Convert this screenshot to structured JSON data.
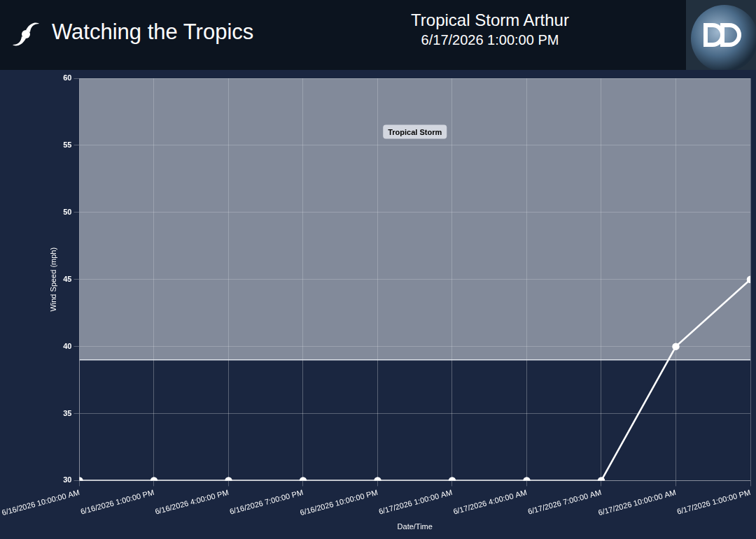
{
  "header": {
    "text": "Watching the Tropics"
  },
  "chart_data": {
    "type": "line",
    "title": "Tropical Storm Arthur",
    "subtitle": "6/17/2026 1:00:00 PM",
    "x_label": "Date/Time",
    "y_label": "Wind Speed (mph)",
    "categories": [
      "6/16/2026 10:00:00 AM",
      "6/16/2026 1:00:00 PM",
      "6/16/2026 4:00:00 PM",
      "6/16/2026 7:00:00 PM",
      "6/16/2026 10:00:00 PM",
      "6/17/2026 1:00:00 AM",
      "6/17/2026 4:00:00 AM",
      "6/17/2026 7:00:00 AM",
      "6/17/2026 10:00:00 AM",
      "6/17/2026 1:00:00 PM"
    ],
    "values": [
      30,
      30,
      30,
      30,
      30,
      30,
      30,
      30,
      40,
      45
    ],
    "color": "#ffffff",
    "marker": "circle",
    "ylim": [
      30,
      60
    ],
    "yticks": [
      30,
      35,
      40,
      45,
      50,
      55,
      60
    ],
    "grid": true,
    "bands": [
      {
        "from": 39,
        "to": 60,
        "label": "Tropical Storm"
      }
    ]
  }
}
